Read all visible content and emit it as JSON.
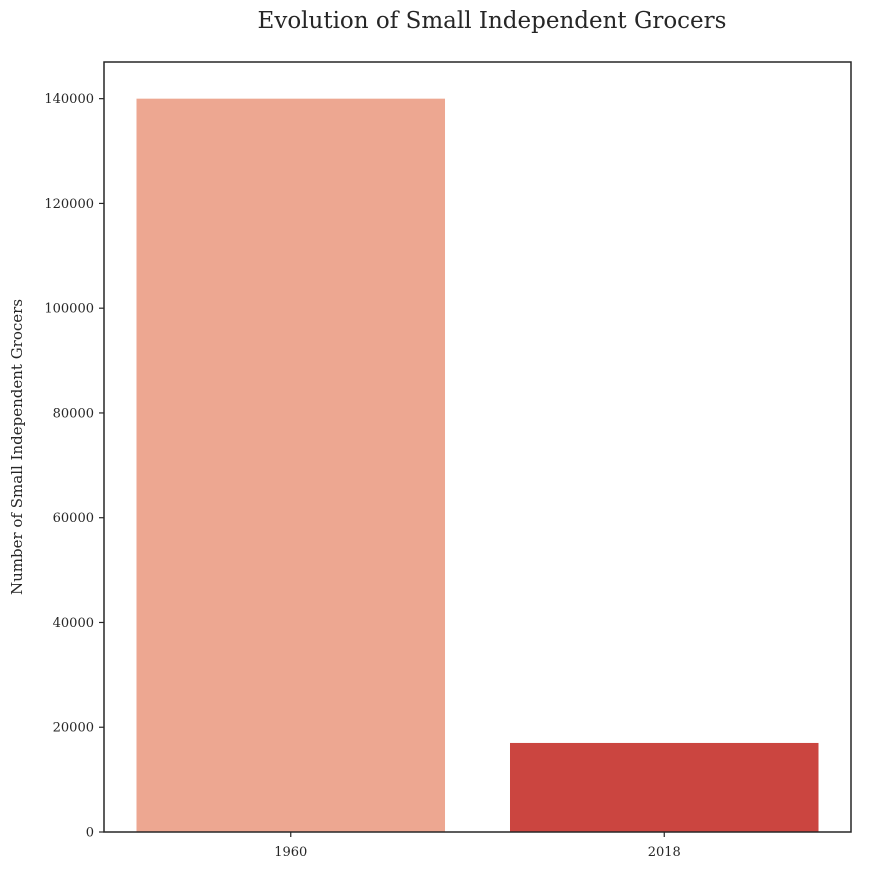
{
  "chart_data": {
    "type": "bar",
    "title": "Evolution of Small Independent Grocers",
    "xlabel": "",
    "ylabel": "Number of Small Independent Grocers",
    "categories": [
      "1960",
      "2018"
    ],
    "values": [
      140000,
      17000
    ],
    "colors": [
      "#eda791",
      "#cb4540"
    ],
    "ylim": [
      0,
      147000
    ],
    "yticks": [
      0,
      20000,
      40000,
      60000,
      80000,
      100000,
      120000,
      140000
    ],
    "grid": false,
    "legend": "none"
  }
}
